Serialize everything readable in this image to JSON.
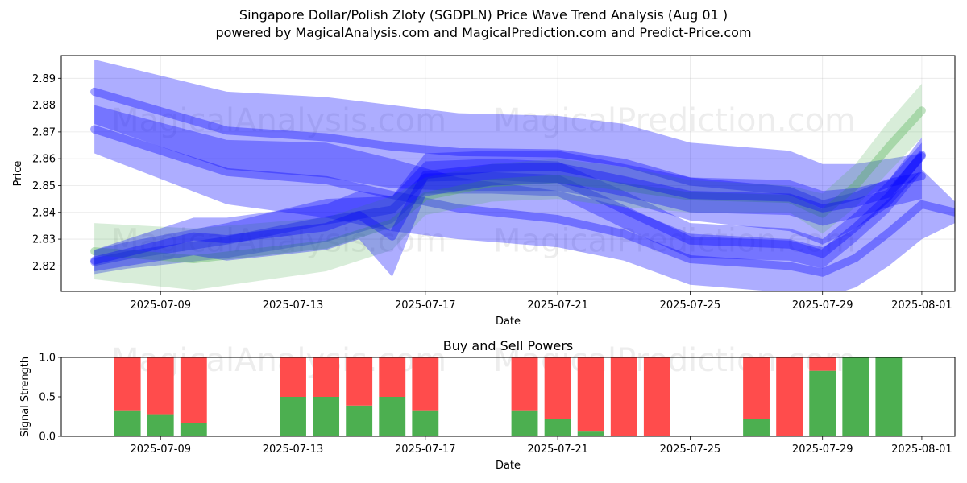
{
  "header": {
    "title": "Singapore Dollar/Polish Zloty (SGDPLN) Price Wave Trend Analysis (Aug 01 )",
    "subtitle": "powered by MagicalAnalysis.com and MagicalPrediction.com and Predict-Price.com"
  },
  "watermarks": [
    "MagicalAnalysis.com",
    "MagicalPrediction.com"
  ],
  "colors": {
    "blue_band": "#0000ff",
    "green_band": "#4caf50",
    "buy": "#4caf50",
    "sell": "#ff4c4c"
  },
  "chart_data": [
    {
      "type": "area",
      "title": "",
      "xlabel": "Date",
      "ylabel": "Price",
      "xlim": [
        "2025-07-06",
        "2025-08-02"
      ],
      "ylim": [
        2.8105,
        2.8985
      ],
      "x_ticks": [
        "2025-07-09",
        "2025-07-13",
        "2025-07-17",
        "2025-07-21",
        "2025-07-25",
        "2025-07-29",
        "2025-08-01"
      ],
      "y_ticks": [
        2.82,
        2.83,
        2.84,
        2.85,
        2.86,
        2.87,
        2.88,
        2.89
      ],
      "grid": true,
      "series": [
        {
          "color": "blue",
          "x": [
            "2025-07-07",
            "2025-07-11",
            "2025-07-14",
            "2025-07-16",
            "2025-07-18",
            "2025-07-21",
            "2025-07-23",
            "2025-07-25",
            "2025-07-28",
            "2025-07-29",
            "2025-07-30",
            "2025-07-31",
            "2025-08-01"
          ],
          "upper": [
            2.897,
            2.885,
            2.883,
            2.88,
            2.877,
            2.876,
            2.873,
            2.866,
            2.863,
            2.858,
            2.858,
            2.86,
            2.862
          ],
          "lower": [
            2.873,
            2.856,
            2.853,
            2.849,
            2.848,
            2.848,
            2.844,
            2.837,
            2.833,
            2.828,
            2.834,
            2.842,
            2.845
          ]
        },
        {
          "color": "blue",
          "x": [
            "2025-07-07",
            "2025-07-11",
            "2025-07-14",
            "2025-07-16",
            "2025-07-18",
            "2025-07-21",
            "2025-07-23",
            "2025-07-25",
            "2025-07-28",
            "2025-07-29",
            "2025-07-30",
            "2025-07-31",
            "2025-08-01",
            "2025-08-02"
          ],
          "upper": [
            2.88,
            2.867,
            2.866,
            2.86,
            2.853,
            2.848,
            2.842,
            2.832,
            2.83,
            2.827,
            2.834,
            2.845,
            2.856,
            2.844
          ],
          "lower": [
            2.862,
            2.843,
            2.838,
            2.833,
            2.83,
            2.827,
            2.822,
            2.813,
            2.81,
            2.808,
            2.812,
            2.82,
            2.83,
            2.836
          ]
        },
        {
          "color": "blue",
          "x": [
            "2025-07-07",
            "2025-07-08",
            "2025-07-11",
            "2025-07-14",
            "2025-07-16",
            "2025-07-17",
            "2025-07-19",
            "2025-07-21",
            "2025-07-23",
            "2025-07-25",
            "2025-07-28",
            "2025-07-29",
            "2025-07-30",
            "2025-07-31",
            "2025-08-01"
          ],
          "upper": [
            2.826,
            2.829,
            2.836,
            2.845,
            2.846,
            2.859,
            2.86,
            2.859,
            2.848,
            2.836,
            2.834,
            2.83,
            2.84,
            2.852,
            2.868
          ],
          "lower": [
            2.817,
            2.819,
            2.823,
            2.829,
            2.836,
            2.847,
            2.847,
            2.846,
            2.834,
            2.823,
            2.822,
            2.819,
            2.829,
            2.84,
            2.855
          ]
        },
        {
          "color": "green",
          "x": [
            "2025-07-07",
            "2025-07-10",
            "2025-07-14",
            "2025-07-16",
            "2025-07-17",
            "2025-07-19",
            "2025-07-21",
            "2025-07-23",
            "2025-07-25",
            "2025-07-28",
            "2025-07-29",
            "2025-07-30",
            "2025-07-31",
            "2025-08-01"
          ],
          "upper": [
            2.836,
            2.834,
            2.838,
            2.846,
            2.853,
            2.858,
            2.86,
            2.857,
            2.852,
            2.85,
            2.847,
            2.858,
            2.874,
            2.888
          ],
          "lower": [
            2.815,
            2.811,
            2.818,
            2.826,
            2.839,
            2.844,
            2.845,
            2.842,
            2.84,
            2.84,
            2.832,
            2.842,
            2.855,
            2.868
          ]
        },
        {
          "color": "blue",
          "x": [
            "2025-07-07",
            "2025-07-10",
            "2025-07-11",
            "2025-07-14",
            "2025-07-15",
            "2025-07-16",
            "2025-07-17",
            "2025-07-19",
            "2025-07-21",
            "2025-07-23",
            "2025-07-25",
            "2025-07-28",
            "2025-07-29",
            "2025-07-30",
            "2025-07-31",
            "2025-08-01"
          ],
          "upper": [
            2.826,
            2.838,
            2.838,
            2.843,
            2.848,
            2.846,
            2.862,
            2.863,
            2.863,
            2.858,
            2.853,
            2.852,
            2.848,
            2.849,
            2.852,
            2.866
          ],
          "lower": [
            2.818,
            2.824,
            2.822,
            2.826,
            2.83,
            2.816,
            2.846,
            2.85,
            2.851,
            2.846,
            2.84,
            2.839,
            2.835,
            2.838,
            2.842,
            2.856
          ]
        }
      ],
      "watermark_rows": [
        2.8745,
        2.8295
      ]
    },
    {
      "type": "bar",
      "title": "Buy and Sell Powers",
      "xlabel": "Date",
      "ylabel": "Signal Strength",
      "xlim": [
        "2025-07-06",
        "2025-08-02"
      ],
      "ylim": [
        0,
        1.0
      ],
      "x_ticks": [
        "2025-07-09",
        "2025-07-13",
        "2025-07-17",
        "2025-07-21",
        "2025-07-25",
        "2025-07-29",
        "2025-08-01"
      ],
      "y_ticks": [
        "0.0",
        "0.5",
        "1.0"
      ],
      "grid": false,
      "categories": [
        "2025-07-08",
        "2025-07-09",
        "2025-07-10",
        "2025-07-13",
        "2025-07-14",
        "2025-07-15",
        "2025-07-16",
        "2025-07-17",
        "2025-07-20",
        "2025-07-21",
        "2025-07-22",
        "2025-07-23",
        "2025-07-24",
        "2025-07-27",
        "2025-07-28",
        "2025-07-29",
        "2025-07-30",
        "2025-07-31"
      ],
      "series": [
        {
          "name": "buy",
          "values": [
            0.33,
            0.28,
            0.17,
            0.5,
            0.5,
            0.39,
            0.5,
            0.33,
            0.33,
            0.22,
            0.06,
            0.0,
            0.0,
            0.22,
            0.0,
            0.83,
            1.0,
            1.0
          ]
        },
        {
          "name": "sell",
          "values": [
            0.67,
            0.72,
            0.83,
            0.5,
            0.5,
            0.61,
            0.5,
            0.67,
            0.67,
            0.78,
            0.94,
            1.0,
            1.0,
            0.78,
            1.0,
            0.17,
            0.0,
            0.0
          ]
        }
      ],
      "watermark_rows": [
        0.97
      ]
    }
  ]
}
